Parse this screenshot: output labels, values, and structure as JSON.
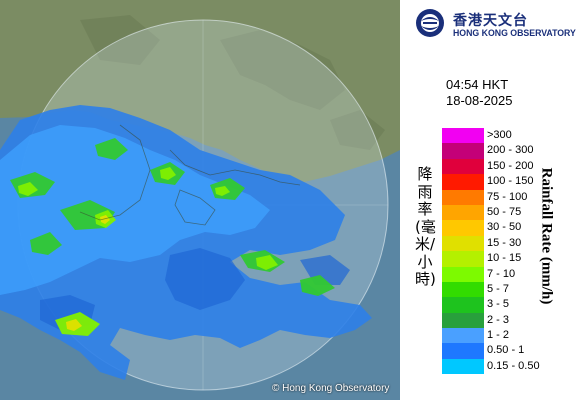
{
  "header": {
    "logo_cn": "香港天文台",
    "logo_en": "HONG KONG OBSERVATORY",
    "time": "04:54 HKT",
    "date": "18-08-2025"
  },
  "legend": {
    "title_cn": "降雨率(毫米/小時)",
    "title_en": "Rainfall Rate (mm/h)",
    "items": [
      {
        "label": ">300",
        "color": "#f200f2"
      },
      {
        "label": "200 - 300",
        "color": "#c40078"
      },
      {
        "label": "150 - 200",
        "color": "#e0003c"
      },
      {
        "label": "100 - 150",
        "color": "#ff1a00"
      },
      {
        "label": "75 - 100",
        "color": "#ff7a00"
      },
      {
        "label": "50 - 75",
        "color": "#ffa500"
      },
      {
        "label": "30 - 50",
        "color": "#ffc800"
      },
      {
        "label": "15 - 30",
        "color": "#e0e000"
      },
      {
        "label": "10 - 15",
        "color": "#b4f000"
      },
      {
        "label": "7 - 10",
        "color": "#7dfa00"
      },
      {
        "label": "5 - 7",
        "color": "#32dc00"
      },
      {
        "label": "3 - 5",
        "color": "#1ec31e"
      },
      {
        "label": "2 - 3",
        "color": "#28a03c"
      },
      {
        "label": "1 - 2",
        "color": "#4aa0ff"
      },
      {
        "label": "0.50 - 1",
        "color": "#1e78ff"
      },
      {
        "label": "0.15 - 0.50",
        "color": "#00c8ff"
      }
    ]
  },
  "map": {
    "copyright": "© Hong Kong Observatory",
    "colors": {
      "sea": "#5e8aa6",
      "land": "#7f8f66",
      "radar_range": "#cfe0e8"
    }
  }
}
